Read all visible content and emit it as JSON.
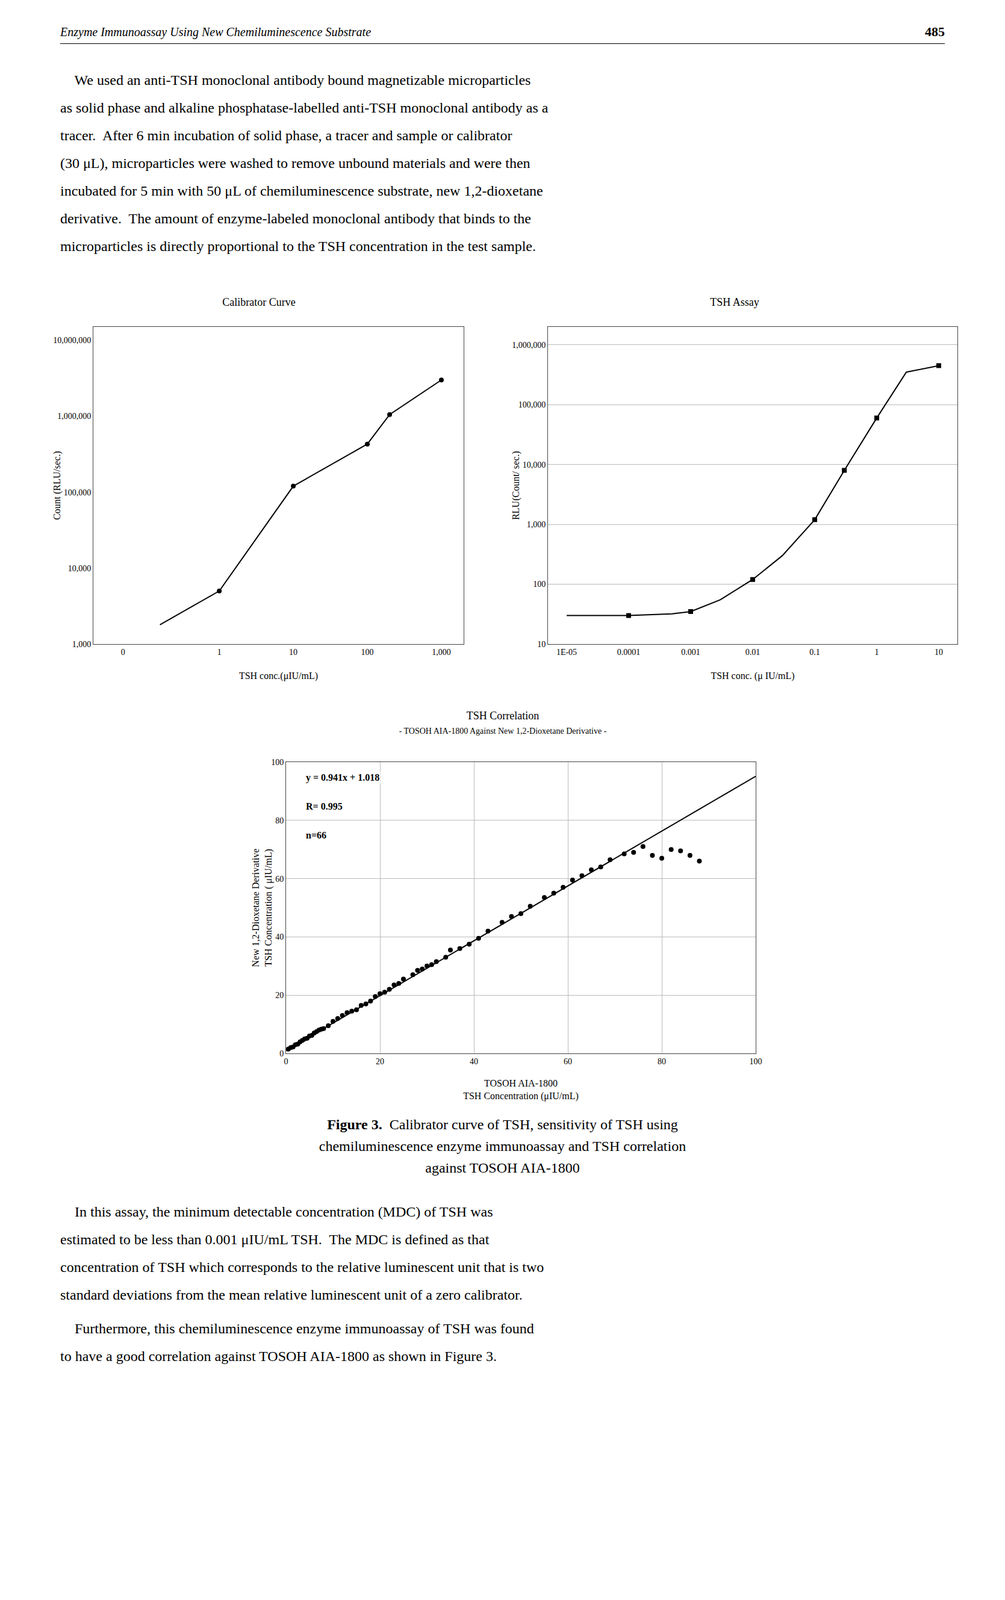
{
  "header": "Enzyme Immunoassay Using New Chemiluminescence Substrate",
  "page_number": "485",
  "text_before": [
    [
      "    We used an anti-TSH monoclonal antibody bound magnetizable microparticles",
      "as solid phase and alkaline phosphatase-labelled anti-TSH monoclonal antibody as a",
      "tracer.  After 6 min incubation of solid phase, a tracer and sample or calibrator",
      "(30 μL), microparticles were washed to remove unbound materials and were then",
      "incubated for 5 min with 50 μL of chemiluminescence substrate, new 1,2-dioxetane",
      "derivative.  The amount of enzyme-labeled monoclonal antibody that binds to the",
      "microparticles is directly proportional to the TSH concentration in the test sample."
    ]
  ],
  "caption": {
    "label": "Figure 3.",
    "lines": [
      "  Calibrator curve of TSH, sensitivity of TSH using",
      "chemiluminescence enzyme immunoassay and TSH correlation",
      "against TOSOH AIA-1800"
    ]
  },
  "text_after": [
    [
      "    In this assay, the minimum detectable concentration (MDC) of TSH was",
      "estimated to be less than 0.001 μIU/mL TSH.  The MDC is defined as that",
      "concentration of TSH which corresponds to the relative luminescent unit that is two",
      "standard deviations from the mean relative luminescent unit of a zero calibrator."
    ],
    [
      "    Furthermore, this chemiluminescence enzyme immunoassay of TSH was found",
      "to have a good correlation against TOSOH AIA-1800 as shown in Figure 3."
    ]
  ],
  "chart_data": [
    {
      "type": "line",
      "title": "Calibrator Curve",
      "xlabel": "TSH conc.(μIU/mL)",
      "ylabel": "Count (RLU/sec.)",
      "log": "y",
      "linthresh": 0.5,
      "grid": false,
      "xlim": [
        -0.2,
        2000
      ],
      "xticks": [
        0,
        1,
        10,
        100,
        {
          "value": 1000,
          "label": "1,000"
        }
      ],
      "ylim": [
        1000,
        15000000
      ],
      "yticks": [
        {
          "value": 1000,
          "label": "1,000"
        },
        {
          "value": 10000,
          "label": "10,000"
        },
        {
          "value": 100000,
          "label": "100,000"
        },
        {
          "value": 1000000,
          "label": "1,000,000"
        },
        {
          "value": 10000000,
          "label": "10,000,000"
        }
      ],
      "series": [
        {
          "type": "line",
          "color": "black",
          "x": [
            0.25,
            1,
            10,
            100,
            200,
            1000
          ],
          "values": [
            1800,
            5000,
            120000,
            430000,
            1050000,
            3000000
          ]
        },
        {
          "type": "scatter",
          "color": "black",
          "marker": "circle",
          "x": [
            1,
            10,
            100,
            200,
            1000
          ],
          "values": [
            5000,
            120000,
            430000,
            1050000,
            3000000
          ]
        }
      ]
    },
    {
      "type": "line",
      "title": "TSH Assay",
      "xlabel": "TSH conc. (μ IU/mL)",
      "ylabel": "RLU(Count/ sec.)",
      "log": true,
      "grid": "y",
      "xlim": [
        5e-06,
        20
      ],
      "xticks": [
        {
          "value": 1e-05,
          "label": "1E-05"
        },
        0.0001,
        0.001,
        0.01,
        0.1,
        1,
        10
      ],
      "ylim": [
        10,
        2000000
      ],
      "yticks": [
        10,
        100,
        {
          "value": 1000,
          "label": "1,000"
        },
        {
          "value": 10000,
          "label": "10,000"
        },
        {
          "value": 100000,
          "label": "100,000"
        },
        {
          "value": 1000000,
          "label": "1,000,000"
        }
      ],
      "series": [
        {
          "type": "line",
          "color": "black",
          "x": [
            1e-05,
            0.0001,
            0.0005,
            0.001,
            0.003,
            0.01,
            0.03,
            0.1,
            0.3,
            1,
            3,
            10
          ],
          "values": [
            30,
            30,
            32,
            35,
            55,
            120,
            300,
            1200,
            8000,
            60000,
            350000,
            450000
          ]
        },
        {
          "type": "scatter",
          "color": "black",
          "marker": "square",
          "x": [
            0.0001,
            0.001,
            0.01,
            0.1,
            0.3,
            1,
            10
          ],
          "values": [
            30,
            35,
            120,
            1200,
            8000,
            60000,
            450000
          ]
        }
      ]
    },
    {
      "type": "scatter",
      "title": "TSH Correlation",
      "subtitle": "- TOSOH AIA-1800 Against New 1,2-Dioxetane Derivative -",
      "xlabel": [
        "TOSOH AIA-1800",
        "TSH Concentration (μIU/mL)"
      ],
      "ylabel": [
        "New 1,2-Dioxetane Derivative",
        "TSH Concentration ( μIU/mL)"
      ],
      "annotations": [
        "y = 0.941x + 1.018",
        "R= 0.995",
        "n=66"
      ],
      "grid": true,
      "xlim": [
        0,
        100
      ],
      "xticks": [
        0,
        20,
        40,
        60,
        80,
        100
      ],
      "ylim": [
        0,
        100
      ],
      "yticks": [
        0,
        20,
        40,
        60,
        80,
        100
      ],
      "series": [
        {
          "type": "scatter",
          "color": "black",
          "marker": "circle",
          "x": [
            0.5,
            1.0,
            1.5,
            2.0,
            2.5,
            3.0,
            3.5,
            4.0,
            4.5,
            5.0,
            5.5,
            6.0,
            6.5,
            7.0,
            7.5,
            8.0,
            9.0,
            10.0,
            11.0,
            12.0,
            13.0,
            14.0,
            15.0,
            16.0,
            17.0,
            18.0,
            19.0,
            20.0,
            21.0,
            22.0,
            23.0,
            24.0,
            25.0,
            27.0,
            28.0,
            29.0,
            30.0,
            31.0,
            32.0,
            34.0,
            35.0,
            37.0,
            39.0,
            41.0,
            43.0,
            46.0,
            48.0,
            50.0,
            52.0,
            55.0,
            57.0,
            59.0,
            61.0,
            63.0,
            65.0,
            67.0,
            69.0,
            72.0,
            74.0,
            76.0,
            78.0,
            80.0,
            82.0,
            84.0,
            86.0,
            88.0
          ],
          "values": [
            1.5,
            2.0,
            2.2,
            3.0,
            3.2,
            4.0,
            4.5,
            5.0,
            5.2,
            6.0,
            6.2,
            7.0,
            7.5,
            8.0,
            8.3,
            8.5,
            9.5,
            11.0,
            12.0,
            13.0,
            14.0,
            14.5,
            15.0,
            16.5,
            17.0,
            18.0,
            19.5,
            20.5,
            21.0,
            22.0,
            23.5,
            24.0,
            25.5,
            27.0,
            28.5,
            29.0,
            30.0,
            30.5,
            31.5,
            33.0,
            35.5,
            36.0,
            37.5,
            39.5,
            42.0,
            45.0,
            47.0,
            48.0,
            50.5,
            53.5,
            55.0,
            57.0,
            59.5,
            61.0,
            63.0,
            64.0,
            66.5,
            68.5,
            69.0,
            71.0,
            68.0,
            67.0,
            70.0,
            69.5,
            68.0,
            66.0
          ]
        },
        {
          "type": "line",
          "color": "black",
          "x": [
            0,
            100
          ],
          "values": [
            1.018,
            95.118
          ]
        }
      ]
    }
  ]
}
